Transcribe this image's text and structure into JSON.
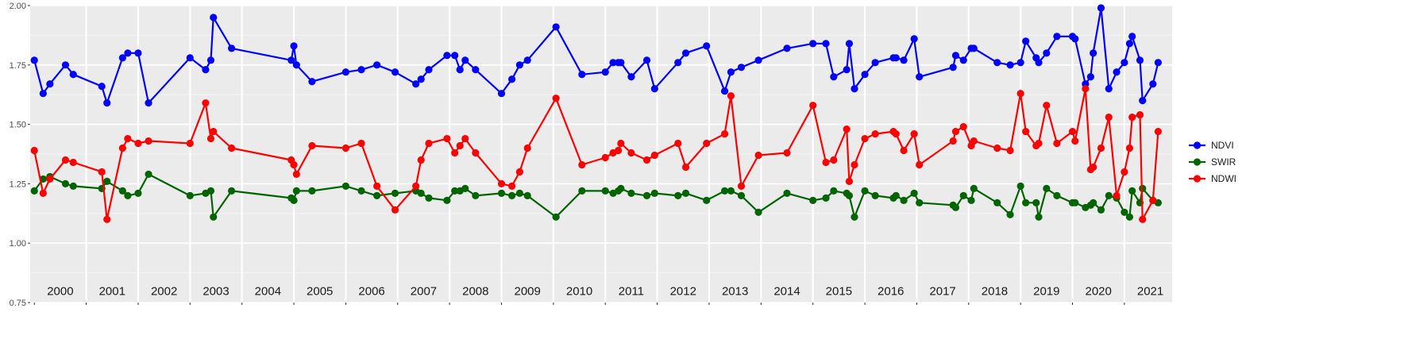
{
  "chart_data": {
    "type": "line",
    "title": "",
    "xlabel": "",
    "ylabel": "",
    "ylim": [
      0.75,
      2.0
    ],
    "xlim": [
      1999.92,
      2021.92
    ],
    "y_ticks": [
      "0.75",
      "1.00",
      "1.25",
      "1.50",
      "1.75",
      "2.00"
    ],
    "y_tick_values": [
      0.75,
      1.0,
      1.25,
      1.5,
      1.75,
      2.0
    ],
    "grid": true,
    "panel_background": "#ebebeb",
    "legend_position": "right",
    "year_labels": [
      "2000",
      "2001",
      "2002",
      "2003",
      "2004",
      "2005",
      "2006",
      "2007",
      "2008",
      "2009",
      "2010",
      "2011",
      "2012",
      "2013",
      "2014",
      "2015",
      "2016",
      "2017",
      "2018",
      "2019",
      "2020",
      "2021"
    ],
    "series": [
      {
        "name": "NDVI",
        "color": "#0000ff",
        "x": [
          2000.0,
          2000.17,
          2000.3,
          2000.6,
          2000.75,
          2001.3,
          2001.4,
          2001.7,
          2001.8,
          2002.0,
          2002.2,
          2003.0,
          2003.3,
          2003.4,
          2003.45,
          2003.8,
          2004.95,
          2005.0,
          2005.05,
          2005.35,
          2006.0,
          2006.3,
          2006.6,
          2006.95,
          2007.35,
          2007.45,
          2007.6,
          2007.95,
          2008.1,
          2008.2,
          2008.3,
          2008.5,
          2009.0,
          2009.2,
          2009.35,
          2009.5,
          2010.05,
          2010.55,
          2011.0,
          2011.15,
          2011.25,
          2011.3,
          2011.5,
          2011.8,
          2011.95,
          2012.4,
          2012.55,
          2012.95,
          2013.3,
          2013.42,
          2013.62,
          2013.95,
          2014.5,
          2015.0,
          2015.25,
          2015.4,
          2015.65,
          2015.7,
          2015.8,
          2016.0,
          2016.2,
          2016.55,
          2016.6,
          2016.75,
          2016.95,
          2017.05,
          2017.7,
          2017.75,
          2017.9,
          2018.05,
          2018.1,
          2018.55,
          2018.8,
          2019.0,
          2019.1,
          2019.3,
          2019.35,
          2019.5,
          2019.7,
          2020.0,
          2020.05,
          2020.25,
          2020.35,
          2020.4,
          2020.55,
          2020.7,
          2020.85,
          2021.0,
          2021.1,
          2021.15,
          2021.3,
          2021.35,
          2021.55,
          2021.65
        ],
        "y": [
          1.77,
          1.63,
          1.67,
          1.75,
          1.71,
          1.66,
          1.59,
          1.78,
          1.8,
          1.8,
          1.59,
          1.78,
          1.73,
          1.77,
          1.95,
          1.82,
          1.77,
          1.83,
          1.75,
          1.68,
          1.72,
          1.73,
          1.75,
          1.72,
          1.67,
          1.69,
          1.73,
          1.79,
          1.79,
          1.73,
          1.77,
          1.73,
          1.63,
          1.69,
          1.75,
          1.77,
          1.91,
          1.71,
          1.72,
          1.76,
          1.76,
          1.76,
          1.7,
          1.77,
          1.65,
          1.76,
          1.8,
          1.83,
          1.64,
          1.72,
          1.74,
          1.77,
          1.82,
          1.84,
          1.84,
          1.7,
          1.73,
          1.84,
          1.65,
          1.71,
          1.76,
          1.78,
          1.78,
          1.77,
          1.86,
          1.7,
          1.74,
          1.79,
          1.77,
          1.82,
          1.82,
          1.76,
          1.75,
          1.76,
          1.85,
          1.78,
          1.76,
          1.8,
          1.87,
          1.87,
          1.86,
          1.67,
          1.7,
          1.8,
          1.99,
          1.65,
          1.72,
          1.76,
          1.84,
          1.87,
          1.77,
          1.6,
          1.67,
          1.76
        ]
      },
      {
        "name": "SWIR",
        "color": "#006400",
        "x": [
          2000.0,
          2000.17,
          2000.3,
          2000.6,
          2000.75,
          2001.3,
          2001.4,
          2001.7,
          2001.8,
          2002.0,
          2002.2,
          2003.0,
          2003.3,
          2003.4,
          2003.45,
          2003.8,
          2004.95,
          2005.0,
          2005.05,
          2005.35,
          2006.0,
          2006.3,
          2006.6,
          2006.95,
          2007.35,
          2007.45,
          2007.6,
          2007.95,
          2008.1,
          2008.2,
          2008.3,
          2008.5,
          2009.0,
          2009.2,
          2009.35,
          2009.5,
          2010.05,
          2010.55,
          2011.0,
          2011.15,
          2011.25,
          2011.3,
          2011.5,
          2011.8,
          2011.95,
          2012.4,
          2012.55,
          2012.95,
          2013.3,
          2013.42,
          2013.62,
          2013.95,
          2014.5,
          2015.0,
          2015.25,
          2015.4,
          2015.65,
          2015.7,
          2015.8,
          2016.0,
          2016.2,
          2016.55,
          2016.6,
          2016.75,
          2016.95,
          2017.05,
          2017.7,
          2017.75,
          2017.9,
          2018.05,
          2018.1,
          2018.55,
          2018.8,
          2019.0,
          2019.1,
          2019.3,
          2019.35,
          2019.5,
          2019.7,
          2020.0,
          2020.05,
          2020.25,
          2020.35,
          2020.4,
          2020.55,
          2020.7,
          2020.85,
          2021.0,
          2021.1,
          2021.15,
          2021.3,
          2021.35,
          2021.55,
          2021.65
        ],
        "y": [
          1.22,
          1.27,
          1.28,
          1.25,
          1.24,
          1.23,
          1.26,
          1.22,
          1.2,
          1.21,
          1.29,
          1.2,
          1.21,
          1.22,
          1.11,
          1.22,
          1.19,
          1.18,
          1.22,
          1.22,
          1.24,
          1.22,
          1.2,
          1.21,
          1.22,
          1.21,
          1.19,
          1.18,
          1.22,
          1.22,
          1.23,
          1.2,
          1.21,
          1.2,
          1.21,
          1.2,
          1.11,
          1.22,
          1.22,
          1.21,
          1.22,
          1.23,
          1.21,
          1.2,
          1.21,
          1.2,
          1.21,
          1.18,
          1.22,
          1.22,
          1.2,
          1.13,
          1.21,
          1.18,
          1.19,
          1.22,
          1.21,
          1.2,
          1.11,
          1.22,
          1.2,
          1.19,
          1.2,
          1.18,
          1.21,
          1.17,
          1.16,
          1.15,
          1.2,
          1.18,
          1.23,
          1.17,
          1.12,
          1.24,
          1.17,
          1.17,
          1.11,
          1.23,
          1.2,
          1.17,
          1.17,
          1.15,
          1.16,
          1.17,
          1.14,
          1.2,
          1.19,
          1.13,
          1.11,
          1.22,
          1.17,
          1.23,
          1.18,
          1.17
        ]
      },
      {
        "name": "NDWI",
        "color": "#ff0000",
        "x": [
          2000.0,
          2000.17,
          2000.3,
          2000.6,
          2000.75,
          2001.3,
          2001.4,
          2001.7,
          2001.8,
          2002.0,
          2002.2,
          2003.0,
          2003.3,
          2003.4,
          2003.45,
          2003.8,
          2004.95,
          2005.0,
          2005.05,
          2005.35,
          2006.0,
          2006.3,
          2006.6,
          2006.95,
          2007.35,
          2007.45,
          2007.6,
          2007.95,
          2008.1,
          2008.2,
          2008.3,
          2008.5,
          2009.0,
          2009.2,
          2009.35,
          2009.5,
          2010.05,
          2010.55,
          2011.0,
          2011.15,
          2011.25,
          2011.3,
          2011.5,
          2011.8,
          2011.95,
          2012.4,
          2012.55,
          2012.95,
          2013.3,
          2013.42,
          2013.62,
          2013.95,
          2014.5,
          2015.0,
          2015.25,
          2015.4,
          2015.65,
          2015.7,
          2015.8,
          2016.0,
          2016.2,
          2016.55,
          2016.6,
          2016.75,
          2016.95,
          2017.05,
          2017.7,
          2017.75,
          2017.9,
          2018.05,
          2018.1,
          2018.55,
          2018.8,
          2019.0,
          2019.1,
          2019.3,
          2019.35,
          2019.5,
          2019.7,
          2020.0,
          2020.05,
          2020.25,
          2020.35,
          2020.4,
          2020.55,
          2020.7,
          2020.85,
          2021.0,
          2021.1,
          2021.15,
          2021.3,
          2021.35,
          2021.55,
          2021.65
        ],
        "y": [
          1.39,
          1.21,
          1.27,
          1.35,
          1.34,
          1.3,
          1.1,
          1.4,
          1.44,
          1.42,
          1.43,
          1.42,
          1.59,
          1.44,
          1.47,
          1.4,
          1.35,
          1.33,
          1.29,
          1.41,
          1.4,
          1.42,
          1.24,
          1.14,
          1.24,
          1.35,
          1.42,
          1.44,
          1.38,
          1.41,
          1.44,
          1.38,
          1.25,
          1.24,
          1.3,
          1.4,
          1.61,
          1.33,
          1.36,
          1.38,
          1.39,
          1.42,
          1.38,
          1.35,
          1.37,
          1.42,
          1.32,
          1.42,
          1.46,
          1.62,
          1.24,
          1.37,
          1.38,
          1.58,
          1.34,
          1.35,
          1.48,
          1.26,
          1.33,
          1.44,
          1.46,
          1.47,
          1.46,
          1.39,
          1.46,
          1.33,
          1.43,
          1.47,
          1.49,
          1.41,
          1.43,
          1.4,
          1.39,
          1.63,
          1.47,
          1.41,
          1.42,
          1.58,
          1.42,
          1.47,
          1.43,
          1.65,
          1.31,
          1.32,
          1.4,
          1.53,
          1.2,
          1.3,
          1.4,
          1.53,
          1.54,
          1.1,
          1.18,
          1.47
        ]
      }
    ]
  }
}
